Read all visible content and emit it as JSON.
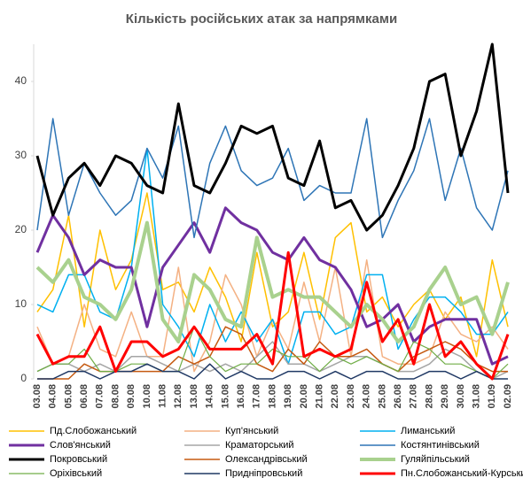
{
  "chart_data": {
    "type": "line",
    "title": "Кількість російських атак за напрямками",
    "categories": [
      "03.08",
      "04.08",
      "05.08",
      "06.08",
      "07.08",
      "08.08",
      "09.08",
      "10.08",
      "11.08",
      "12.08",
      "13.08",
      "14.08",
      "15.08",
      "16.08",
      "17.08",
      "18.08",
      "19.08",
      "20.08",
      "21.08",
      "22.08",
      "23.08",
      "24.08",
      "25.08",
      "26.08",
      "27.08",
      "28.08",
      "29.08",
      "30.08",
      "31.08",
      "01.09",
      "02.09"
    ],
    "ylim": [
      0,
      45
    ],
    "yticks": [
      0,
      10,
      20,
      30,
      40
    ],
    "grid": false,
    "series": [
      {
        "name": "Пд.Слобожанський",
        "color": "#ffc000",
        "width": 1.5,
        "values": [
          9,
          12,
          22,
          7,
          20,
          12,
          16,
          25,
          12,
          13,
          9,
          15,
          11,
          5,
          17,
          7,
          9,
          17,
          8,
          19,
          21,
          9,
          11,
          7,
          10,
          12,
          8,
          11,
          3,
          16,
          7
        ]
      },
      {
        "name": "Куп'янський",
        "color": "#f4b183",
        "width": 1.5,
        "values": [
          7,
          2,
          3,
          10,
          4,
          3,
          9,
          3,
          3,
          15,
          1,
          5,
          14,
          10,
          3,
          8,
          4,
          13,
          5,
          15,
          3,
          16,
          3,
          2,
          2,
          3,
          9,
          6,
          5,
          7,
          4
        ]
      },
      {
        "name": "Лиманський",
        "color": "#00b0f0",
        "width": 1.5,
        "values": [
          10,
          9,
          14,
          14,
          9,
          8,
          15,
          31,
          10,
          7,
          3,
          10,
          5,
          9,
          5,
          8,
          2,
          9,
          9,
          6,
          7,
          14,
          14,
          4,
          8,
          11,
          11,
          9,
          6,
          6,
          9
        ]
      },
      {
        "name": "Слов'янський",
        "color": "#7030a0",
        "width": 3,
        "values": [
          17,
          22,
          19,
          14,
          16,
          15,
          15,
          7,
          15,
          18,
          21,
          17,
          23,
          21,
          20,
          17,
          16,
          19,
          16,
          15,
          12,
          7,
          8,
          10,
          5,
          7,
          8,
          8,
          8,
          2,
          3
        ]
      },
      {
        "name": "Краматорський",
        "color": "#a5a5a5",
        "width": 1.5,
        "values": [
          1,
          2,
          2,
          1,
          2,
          1,
          3,
          3,
          2,
          1,
          2,
          1,
          2,
          1,
          3,
          5,
          2,
          2,
          1,
          2,
          3,
          3,
          2,
          1,
          1,
          2,
          4,
          3,
          1,
          0,
          1
        ]
      },
      {
        "name": "Костянтинівський",
        "color": "#2e75b6",
        "width": 1.5,
        "values": [
          20,
          35,
          22,
          29,
          25,
          22,
          24,
          31,
          27,
          34,
          19,
          29,
          34,
          28,
          26,
          27,
          31,
          24,
          26,
          25,
          25,
          35,
          19,
          24,
          28,
          35,
          24,
          31,
          23,
          20,
          28
        ]
      },
      {
        "name": "Покровський",
        "color": "#000000",
        "width": 3,
        "values": [
          30,
          22,
          27,
          29,
          26,
          30,
          29,
          26,
          25,
          37,
          26,
          25,
          29,
          34,
          33,
          34,
          27,
          26,
          32,
          23,
          24,
          20,
          22,
          26,
          31,
          40,
          41,
          30,
          36,
          45,
          25
        ]
      },
      {
        "name": "Олександрівський",
        "color": "#c55a11",
        "width": 1.5,
        "values": [
          0,
          0,
          0,
          2,
          1,
          1,
          1,
          1,
          1,
          3,
          2,
          3,
          7,
          6,
          2,
          1,
          4,
          2,
          5,
          3,
          3,
          4,
          2,
          1,
          3,
          4,
          5,
          4,
          2,
          1,
          1
        ]
      },
      {
        "name": "Гуляйпільський",
        "color": "#a9d18e",
        "width": 4,
        "values": [
          15,
          13,
          16,
          11,
          10,
          8,
          12,
          21,
          8,
          5,
          14,
          12,
          8,
          7,
          19,
          11,
          12,
          11,
          11,
          9,
          7,
          10,
          8,
          5,
          7,
          12,
          15,
          10,
          11,
          6,
          13
        ]
      },
      {
        "name": "Оріхівський",
        "color": "#70ad47",
        "width": 1.2,
        "values": [
          1,
          2,
          2,
          4,
          1,
          1,
          2,
          2,
          1,
          1,
          7,
          3,
          1,
          2,
          2,
          4,
          3,
          3,
          1,
          3,
          2,
          3,
          2,
          1,
          5,
          4,
          2,
          2,
          1,
          0,
          2
        ]
      },
      {
        "name": "Придніпровський",
        "color": "#1f3864",
        "width": 1.5,
        "values": [
          0,
          0,
          1,
          1,
          0,
          1,
          1,
          2,
          1,
          1,
          0,
          2,
          0,
          1,
          0,
          0,
          1,
          1,
          0,
          1,
          0,
          1,
          1,
          0,
          0,
          1,
          1,
          0,
          1,
          0,
          0
        ]
      },
      {
        "name": "Пн.Слобожанський-Курський",
        "color": "#ff0000",
        "width": 3,
        "values": [
          6,
          2,
          3,
          3,
          7,
          1,
          5,
          5,
          3,
          4,
          7,
          4,
          4,
          4,
          6,
          2,
          17,
          3,
          4,
          3,
          4,
          13,
          5,
          8,
          2,
          10,
          3,
          5,
          2,
          0,
          6
        ]
      }
    ]
  }
}
